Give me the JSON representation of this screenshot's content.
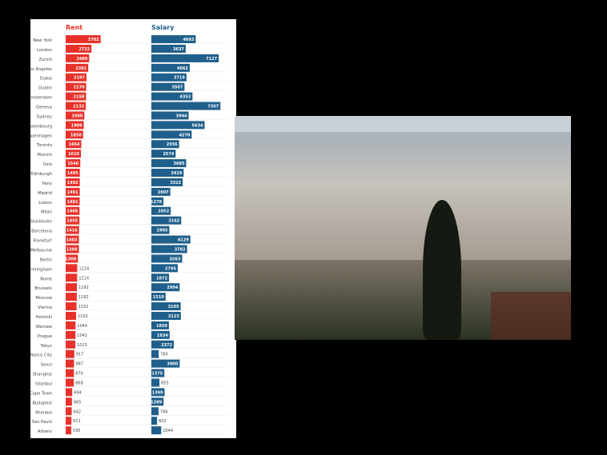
{
  "chart_data": {
    "type": "bar",
    "orientation": "horizontal",
    "panels": [
      {
        "title": "Rent",
        "color": "#e8312a"
      },
      {
        "title": "Salary",
        "color": "#1f5f8b"
      }
    ],
    "categories": [
      "New York",
      "London",
      "Zurich",
      "Los Angeles",
      "Dubai",
      "Dublin",
      "Amsterdam",
      "Geneva",
      "Sydney",
      "Luxembourg",
      "Copenhagen",
      "Toronto",
      "Munich",
      "Oslo",
      "Edinburgh",
      "Paris",
      "Madrid",
      "Lisbon",
      "Milan",
      "Stockholm",
      "Barcelona",
      "Frankfurt",
      "Melbourne",
      "Berlin",
      "Birmingham",
      "Rome",
      "Brussels",
      "Moscow",
      "Vienna",
      "Helsinki",
      "Warsaw",
      "Prague",
      "Tokyo",
      "Mexico City",
      "Seoul",
      "Shanghai",
      "Istanbul",
      "Cape Town",
      "Budapest",
      "Mumbai",
      "Sao Paulo",
      "Athens"
    ],
    "series": [
      {
        "name": "Rent",
        "values": [
          3702,
          2732,
          2489,
          2391,
          2197,
          2170,
          2158,
          2132,
          1980,
          1909,
          1850,
          1654,
          1610,
          1546,
          1495,
          1492,
          1491,
          1481,
          1466,
          1455,
          1416,
          1403,
          1398,
          1300,
          1224,
          1214,
          1192,
          1182,
          1152,
          1102,
          1044,
          1042,
          1023,
          917,
          887,
          870,
          868,
          694,
          665,
          642,
          611,
          595
        ]
      },
      {
        "name": "Salary",
        "values": [
          4693,
          3637,
          7127,
          4062,
          3719,
          3507,
          4352,
          7307,
          3944,
          5634,
          4270,
          2936,
          2574,
          3685,
          3419,
          3322,
          2007,
          1278,
          2052,
          3162,
          1905,
          4129,
          3782,
          3263,
          2795,
          1872,
          2994,
          1510,
          3105,
          3123,
          1859,
          1934,
          2372,
          780,
          3000,
          1375,
          855,
          1399,
          1289,
          766,
          602,
          1044
        ]
      }
    ],
    "grid": true,
    "legend": "none"
  },
  "photo": {
    "subject": "city-skyline-photo"
  }
}
